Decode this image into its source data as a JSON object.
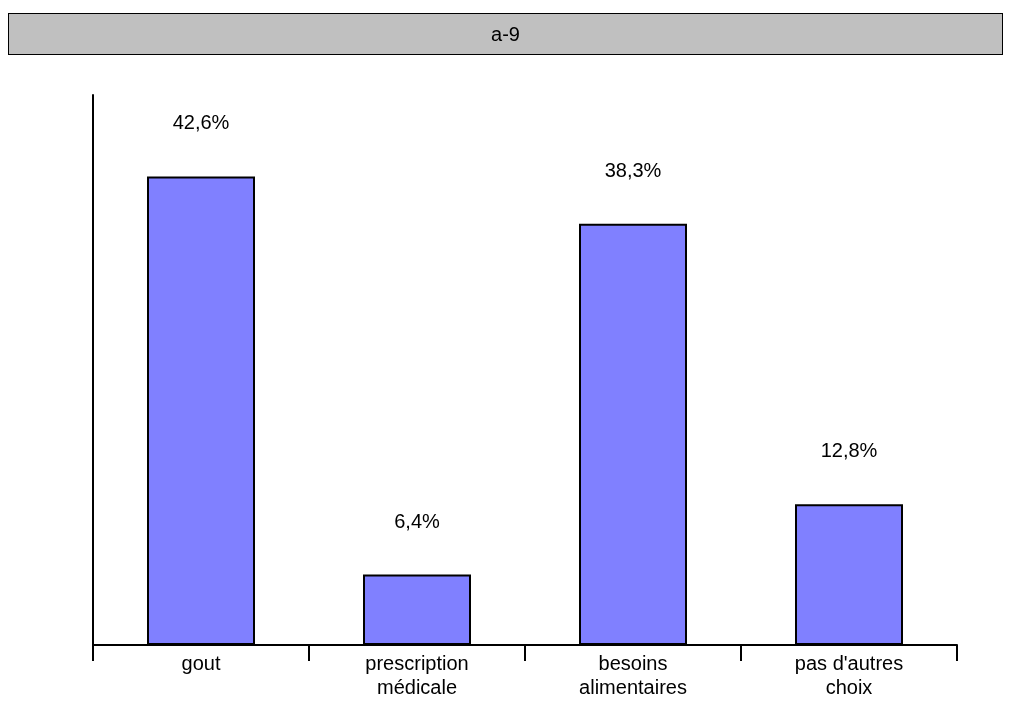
{
  "chart_data": {
    "type": "bar",
    "title": "a-9",
    "categories": [
      "gout",
      "prescription\nmédicale",
      "besoins\nalimentaires",
      "pas d'autres\nchoix"
    ],
    "values": [
      42.6,
      6.4,
      38.3,
      12.8
    ],
    "value_labels": [
      "42,6%",
      "6,4%",
      "38,3%",
      "12,8%"
    ],
    "color": "#8080ff",
    "tick_labels": "x"
  }
}
